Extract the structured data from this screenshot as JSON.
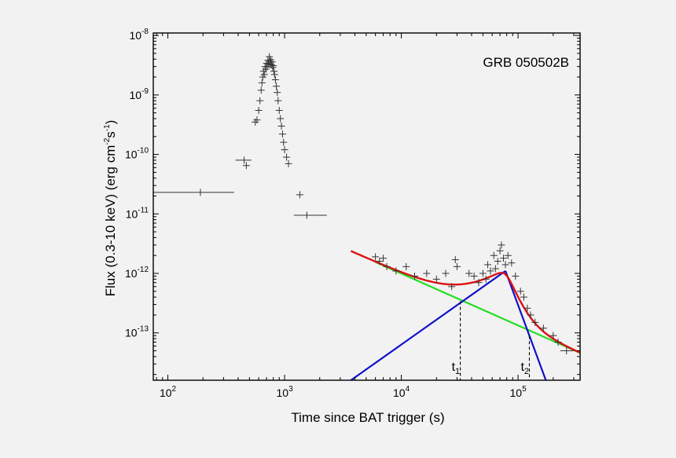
{
  "chart_data": {
    "type": "scatter",
    "title": "GRB 050502B",
    "xlabel": "Time since BAT trigger (s)",
    "ylabel": "Flux (0.3-10 keV) (erg cm",
    "ylabel_unit_exp1": "-2",
    "ylabel_mid": "s",
    "ylabel_unit_exp2": "-1",
    "ylabel_end": ")",
    "x_scale": "log",
    "y_scale": "log",
    "xlim": [
      75,
      340000
    ],
    "ylim": [
      1.6e-14,
      1.1e-08
    ],
    "grid": false,
    "x_ticks": [
      {
        "value": 100,
        "base": "10",
        "exp": "2"
      },
      {
        "value": 1000,
        "base": "10",
        "exp": "3"
      },
      {
        "value": 10000,
        "base": "10",
        "exp": "4"
      },
      {
        "value": 100000,
        "base": "10",
        "exp": "5"
      }
    ],
    "y_ticks": [
      {
        "value": 1e-13,
        "base": "10",
        "exp": "-13"
      },
      {
        "value": 1e-12,
        "base": "10",
        "exp": "-12"
      },
      {
        "value": 1e-11,
        "base": "10",
        "exp": "-11"
      },
      {
        "value": 1e-10,
        "base": "10",
        "exp": "-10"
      },
      {
        "value": 1e-09,
        "base": "10",
        "exp": "-9"
      },
      {
        "value": 1e-08,
        "base": "10",
        "exp": "-8"
      }
    ],
    "series": [
      {
        "color": "#333333",
        "points": [
          {
            "x": 190,
            "y": 2.3e-11,
            "x_lo": 75,
            "x_hi": 370
          },
          {
            "x": 450,
            "y": 8e-11,
            "x_lo": 380,
            "x_hi": 520
          },
          {
            "x": 470,
            "y": 6.5e-11
          },
          {
            "x": 560,
            "y": 3.5e-10
          },
          {
            "x": 580,
            "y": 3.8e-10
          },
          {
            "x": 600,
            "y": 5.5e-10
          },
          {
            "x": 615,
            "y": 8e-10
          },
          {
            "x": 630,
            "y": 1.2e-09
          },
          {
            "x": 640,
            "y": 1.6e-09
          },
          {
            "x": 650,
            "y": 2e-09
          },
          {
            "x": 660,
            "y": 2.5e-09
          },
          {
            "x": 670,
            "y": 2.2e-09
          },
          {
            "x": 680,
            "y": 3e-09
          },
          {
            "x": 690,
            "y": 2.7e-09
          },
          {
            "x": 700,
            "y": 3.4e-09
          },
          {
            "x": 710,
            "y": 3e-09
          },
          {
            "x": 720,
            "y": 3.8e-09
          },
          {
            "x": 730,
            "y": 3.3e-09
          },
          {
            "x": 740,
            "y": 4.4e-09
          },
          {
            "x": 750,
            "y": 3.6e-09
          },
          {
            "x": 760,
            "y": 3.9e-09
          },
          {
            "x": 770,
            "y": 3.2e-09
          },
          {
            "x": 780,
            "y": 3.6e-09
          },
          {
            "x": 790,
            "y": 2.9e-09
          },
          {
            "x": 800,
            "y": 3.1e-09
          },
          {
            "x": 810,
            "y": 2.5e-09
          },
          {
            "x": 820,
            "y": 2.2e-09
          },
          {
            "x": 835,
            "y": 1.8e-09
          },
          {
            "x": 850,
            "y": 1.4e-09
          },
          {
            "x": 865,
            "y": 1.1e-09
          },
          {
            "x": 880,
            "y": 8e-10
          },
          {
            "x": 900,
            "y": 5.5e-10
          },
          {
            "x": 920,
            "y": 4e-10
          },
          {
            "x": 940,
            "y": 3e-10
          },
          {
            "x": 960,
            "y": 2.2e-10
          },
          {
            "x": 980,
            "y": 1.6e-10
          },
          {
            "x": 1000,
            "y": 1.2e-10
          },
          {
            "x": 1040,
            "y": 9e-11
          },
          {
            "x": 1080,
            "y": 7e-11
          },
          {
            "x": 1350,
            "y": 2.1e-11
          },
          {
            "x": 1550,
            "y": 9.5e-12,
            "x_lo": 1200,
            "x_hi": 2300
          },
          {
            "x": 6000,
            "y": 1.9e-12
          },
          {
            "x": 6500,
            "y": 1.6e-12
          },
          {
            "x": 7000,
            "y": 1.8e-12
          },
          {
            "x": 7500,
            "y": 1.3e-12
          },
          {
            "x": 9000,
            "y": 1.1e-12
          },
          {
            "x": 11000,
            "y": 1.3e-12
          },
          {
            "x": 13000,
            "y": 9e-13
          },
          {
            "x": 16500,
            "y": 1e-12
          },
          {
            "x": 20000,
            "y": 8e-13
          },
          {
            "x": 24000,
            "y": 1e-12
          },
          {
            "x": 27000,
            "y": 6e-13
          },
          {
            "x": 29000,
            "y": 1.7e-12
          },
          {
            "x": 30000,
            "y": 1.3e-12
          },
          {
            "x": 38000,
            "y": 1e-12
          },
          {
            "x": 42000,
            "y": 9e-13
          },
          {
            "x": 46000,
            "y": 7e-13
          },
          {
            "x": 50000,
            "y": 1e-12
          },
          {
            "x": 53000,
            "y": 8e-13
          },
          {
            "x": 55000,
            "y": 1.4e-12
          },
          {
            "x": 58000,
            "y": 1.1e-12
          },
          {
            "x": 62000,
            "y": 2e-12
          },
          {
            "x": 64000,
            "y": 1.2e-12
          },
          {
            "x": 67000,
            "y": 1.6e-12
          },
          {
            "x": 70000,
            "y": 2.4e-12
          },
          {
            "x": 72000,
            "y": 3e-12
          },
          {
            "x": 75000,
            "y": 1.8e-12
          },
          {
            "x": 78000,
            "y": 1.4e-12
          },
          {
            "x": 82000,
            "y": 2e-12
          },
          {
            "x": 88000,
            "y": 1.5e-12
          },
          {
            "x": 95000,
            "y": 9e-13
          },
          {
            "x": 105000,
            "y": 5e-13
          },
          {
            "x": 112000,
            "y": 4e-13
          },
          {
            "x": 120000,
            "y": 2.6e-13
          },
          {
            "x": 128000,
            "y": 2e-13
          },
          {
            "x": 140000,
            "y": 1.5e-13
          },
          {
            "x": 165000,
            "y": 1.2e-13
          },
          {
            "x": 200000,
            "y": 9e-14
          },
          {
            "x": 220000,
            "y": 7e-14
          },
          {
            "x": 260000,
            "y": 5e-14,
            "x_lo": 230000,
            "x_hi": 300000
          }
        ]
      }
    ],
    "models": [
      {
        "color": "#22dd22",
        "component": "power-law decay",
        "points": [
          {
            "x": 6000,
            "y": 1.55e-12
          },
          {
            "x": 340000,
            "y": 4.6e-14
          }
        ]
      },
      {
        "color": "#1111cc",
        "component": "rise",
        "points": [
          {
            "x": 3700,
            "y": 1.6e-14
          },
          {
            "x": 78000,
            "y": 1.1e-12
          }
        ]
      },
      {
        "color": "#1111cc",
        "component": "decay",
        "points": [
          {
            "x": 78000,
            "y": 1.1e-12
          },
          {
            "x": 173000,
            "y": 1.6e-14
          }
        ]
      },
      {
        "color": "#dd1111",
        "component": "total",
        "curve": true
      }
    ],
    "annotations": [
      {
        "text": "t",
        "sub": "1",
        "x": 32000,
        "y_top": 3.4e-13
      },
      {
        "text": "t",
        "sub": "2",
        "x": 125000,
        "y_top": 9e-14
      }
    ]
  }
}
